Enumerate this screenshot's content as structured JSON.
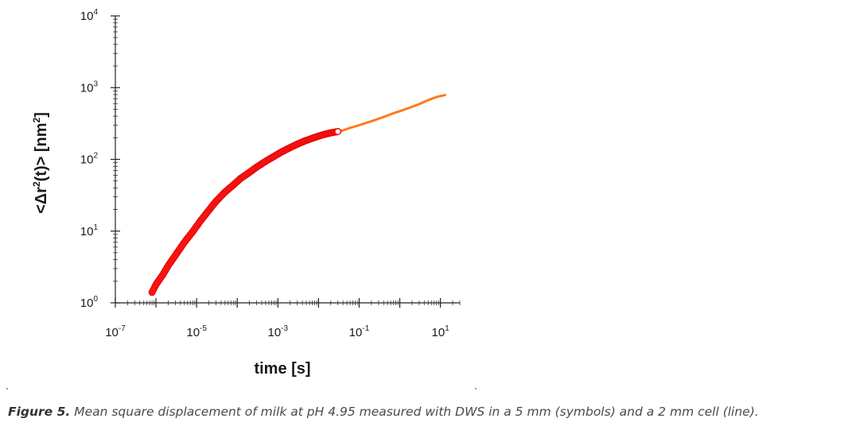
{
  "caption": {
    "label": "Figure 5.",
    "text": " Mean square displacement of milk at pH 4.95 measured with DWS in a 5 mm (symbols) and a 2 mm cell (line)."
  },
  "chart_data": {
    "type": "scatter",
    "xlabel": "time [s]",
    "ylabel": {
      "pre": "<Δr",
      "sup": "2",
      "post": "(t)> [nm",
      "sup2": "2",
      "end": "]"
    },
    "xscale": "log",
    "yscale": "log",
    "xlim": [
      1e-07,
      30
    ],
    "ylim": [
      1,
      10000
    ],
    "x_ticks": [
      {
        "value": 1e-07,
        "base": "10",
        "exp": "-7"
      },
      {
        "value": 1e-05,
        "base": "10",
        "exp": "-5"
      },
      {
        "value": 0.001,
        "base": "10",
        "exp": "-3"
      },
      {
        "value": 0.1,
        "base": "10",
        "exp": "-1"
      },
      {
        "value": 10,
        "base": "10",
        "exp": "1"
      }
    ],
    "y_ticks": [
      {
        "value": 1,
        "base": "10",
        "exp": "0"
      },
      {
        "value": 10,
        "base": "10",
        "exp": "1"
      },
      {
        "value": 100,
        "base": "10",
        "exp": "2"
      },
      {
        "value": 1000,
        "base": "10",
        "exp": "3"
      },
      {
        "value": 10000,
        "base": "10",
        "exp": "4"
      }
    ],
    "grid": false,
    "series": [
      {
        "style": "symbols",
        "color": "#ff1a1a",
        "x": [
          8e-07,
          1e-06,
          1.5e-06,
          2e-06,
          3e-06,
          5e-06,
          8e-06,
          1.2e-05,
          2e-05,
          3e-05,
          5e-05,
          8e-05,
          0.00012,
          0.0002,
          0.0003,
          0.0005,
          0.0008,
          0.0012,
          0.002,
          0.003,
          0.005,
          0.008,
          0.012,
          0.018,
          0.025,
          0.03
        ],
        "y": [
          1.4,
          1.8,
          2.5,
          3.3,
          4.6,
          7.0,
          9.8,
          13.5,
          19.5,
          26,
          35,
          44,
          54,
          66,
          78,
          94,
          110,
          126,
          146,
          163,
          184,
          202,
          218,
          231,
          240,
          244
        ]
      },
      {
        "style": "line",
        "color": "#ff7a1a",
        "x": [
          0.03,
          0.06,
          0.1,
          0.2,
          0.4,
          0.7,
          1,
          2,
          3,
          5,
          8,
          13
        ],
        "y": [
          240,
          275,
          300,
          340,
          390,
          440,
          470,
          540,
          590,
          670,
          740,
          790
        ]
      }
    ],
    "marker": {
      "x": 0.03,
      "y": 244,
      "color": "#ffffff"
    }
  }
}
